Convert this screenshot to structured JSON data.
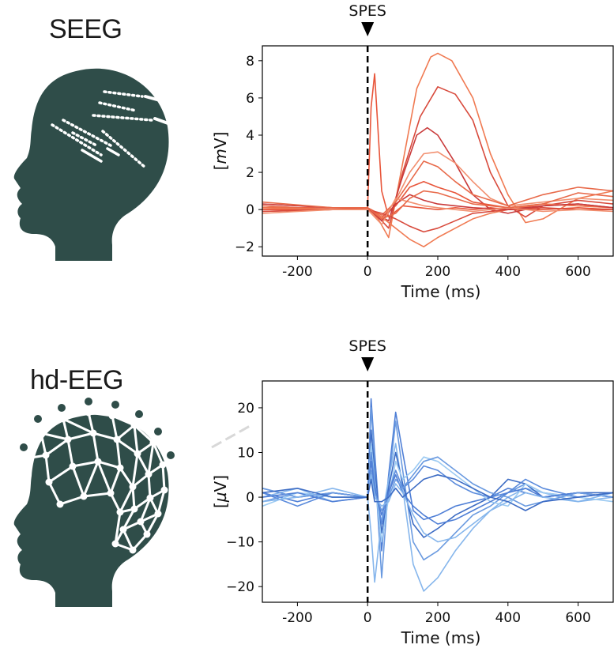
{
  "panels": {
    "seeg_label": "SEEG",
    "hdeeg_label": "hd-EEG"
  },
  "colors": {
    "head": "#2f4d49",
    "electrode": "#ffffff",
    "seeg_traces": [
      "#e8553a",
      "#f07a52",
      "#d84a3c",
      "#c93a3a",
      "#f29070",
      "#e86a4a"
    ],
    "eeg_traces": [
      "#4f7fd6",
      "#6a9ae0",
      "#86b6ec",
      "#3d6cc4",
      "#9ccaf2",
      "#5b8bdc"
    ]
  },
  "chart_data": [
    {
      "type": "line",
      "id": "seeg",
      "annotation": "SPES",
      "annotation_x": 0,
      "xlabel": "Time (ms)",
      "ylabel": "[mV]",
      "ylabel_italic": "m",
      "xlim": [
        -300,
        700
      ],
      "ylim": [
        -2.5,
        8.8
      ],
      "xticks": [
        -200,
        0,
        200,
        400,
        600
      ],
      "xtick_labels": [
        "-200",
        "0",
        "200",
        "400",
        "600"
      ],
      "yticks": [
        -2,
        0,
        2,
        4,
        6,
        8
      ],
      "ytick_labels": [
        "−2",
        "0",
        "2",
        "4",
        "6",
        "8"
      ],
      "stimulus_line": 0,
      "series": [
        {
          "x": [
            -300,
            -100,
            0,
            10,
            20,
            40,
            60,
            100,
            150,
            200,
            250,
            300,
            350,
            400,
            500,
            600,
            700
          ],
          "y": [
            0.1,
            0.1,
            0.1,
            5.5,
            7.3,
            1.0,
            -0.4,
            0.2,
            0.1,
            0.0,
            0.1,
            0.0,
            0.1,
            0.0,
            0.0,
            0.1,
            0.0
          ]
        },
        {
          "x": [
            -300,
            -100,
            0,
            30,
            60,
            100,
            140,
            180,
            200,
            240,
            300,
            350,
            400,
            450,
            500,
            600,
            700
          ],
          "y": [
            0.2,
            0.0,
            0.1,
            -0.5,
            -1.5,
            2.5,
            6.5,
            8.2,
            8.4,
            8.0,
            6.0,
            3.0,
            0.8,
            -0.7,
            -0.5,
            0.6,
            1.0
          ]
        },
        {
          "x": [
            -300,
            -100,
            0,
            30,
            60,
            100,
            150,
            200,
            250,
            300,
            350,
            400,
            450,
            500,
            600,
            700
          ],
          "y": [
            0.0,
            0.1,
            0.1,
            -0.4,
            -1.0,
            2.0,
            5.0,
            6.6,
            6.2,
            4.8,
            2.0,
            0.2,
            -0.4,
            0.2,
            0.5,
            0.3
          ]
        },
        {
          "x": [
            -300,
            -100,
            0,
            30,
            60,
            100,
            140,
            170,
            200,
            250,
            300,
            350,
            400,
            500,
            600,
            700
          ],
          "y": [
            -0.1,
            0.0,
            0.0,
            -0.3,
            -0.6,
            1.8,
            4.0,
            4.4,
            4.0,
            2.5,
            0.8,
            0.0,
            -0.2,
            0.2,
            0.3,
            0.1
          ]
        },
        {
          "x": [
            -300,
            -100,
            0,
            40,
            80,
            120,
            160,
            200,
            250,
            300,
            350,
            400,
            500,
            600,
            700
          ],
          "y": [
            0.0,
            0.1,
            0.0,
            -0.5,
            0.5,
            2.0,
            3.0,
            3.1,
            2.5,
            1.5,
            0.6,
            0.2,
            0.4,
            0.6,
            0.5
          ]
        },
        {
          "x": [
            -300,
            -100,
            0,
            40,
            80,
            120,
            160,
            200,
            250,
            300,
            400,
            500,
            600,
            700
          ],
          "y": [
            0.2,
            0.0,
            0.1,
            -0.3,
            0.4,
            1.5,
            2.6,
            2.3,
            1.5,
            0.8,
            0.2,
            0.8,
            1.2,
            1.0
          ]
        },
        {
          "x": [
            -300,
            -100,
            0,
            40,
            80,
            120,
            160,
            200,
            250,
            300,
            400,
            500,
            600,
            700
          ],
          "y": [
            0.0,
            0.0,
            0.1,
            -0.4,
            0.2,
            1.2,
            1.5,
            1.2,
            0.9,
            0.4,
            0.1,
            0.3,
            0.2,
            0.1
          ]
        },
        {
          "x": [
            -300,
            -100,
            0,
            40,
            80,
            120,
            160,
            200,
            250,
            300,
            350,
            400,
            500,
            600,
            700
          ],
          "y": [
            0.1,
            0.0,
            0.0,
            -0.4,
            -1.0,
            -1.6,
            -2.0,
            -1.5,
            -1.0,
            -0.5,
            -0.2,
            0.0,
            0.3,
            0.2,
            0.1
          ]
        },
        {
          "x": [
            -300,
            -100,
            0,
            40,
            80,
            120,
            160,
            200,
            250,
            300,
            400,
            500,
            600,
            700
          ],
          "y": [
            -0.1,
            0.0,
            0.0,
            -0.2,
            -0.5,
            -0.9,
            -1.2,
            -1.0,
            -0.6,
            -0.2,
            0.0,
            0.1,
            0.0,
            0.0
          ]
        },
        {
          "x": [
            -300,
            -100,
            0,
            40,
            80,
            120,
            160,
            200,
            250,
            300,
            400,
            500,
            600,
            700
          ],
          "y": [
            0.3,
            0.1,
            0.1,
            -0.6,
            0.3,
            0.8,
            0.5,
            0.3,
            0.2,
            0.1,
            0.0,
            0.2,
            0.3,
            0.1
          ]
        },
        {
          "x": [
            -300,
            -100,
            0,
            40,
            80,
            120,
            160,
            200,
            250,
            300,
            400,
            500,
            600,
            700
          ],
          "y": [
            -0.2,
            0.0,
            0.0,
            -0.8,
            0.6,
            0.4,
            0.2,
            0.1,
            0.0,
            -0.1,
            0.1,
            -0.1,
            0.0,
            -0.1
          ]
        },
        {
          "x": [
            -300,
            -100,
            0,
            40,
            80,
            120,
            160,
            200,
            250,
            300,
            400,
            500,
            600,
            700
          ],
          "y": [
            0.4,
            0.1,
            0.1,
            -0.5,
            -0.2,
            0.6,
            1.0,
            0.9,
            0.6,
            0.3,
            0.1,
            0.3,
            0.9,
            0.7
          ]
        }
      ]
    },
    {
      "type": "line",
      "id": "hdeeg",
      "annotation": "SPES",
      "annotation_x": 0,
      "xlabel": "Time (ms)",
      "ylabel": "[µV]",
      "ylabel_italic": "µ",
      "xlim": [
        -300,
        700
      ],
      "ylim": [
        -23.5,
        26
      ],
      "xticks": [
        -200,
        0,
        200,
        400,
        600
      ],
      "xtick_labels": [
        "-200",
        "0",
        "200",
        "400",
        "600"
      ],
      "yticks": [
        -20,
        -10,
        0,
        10,
        20
      ],
      "ytick_labels": [
        "−20",
        "−10",
        "0",
        "10",
        "20"
      ],
      "stimulus_line": 0,
      "series": [
        {
          "x": [
            -300,
            -200,
            -100,
            0,
            10,
            20,
            40,
            60,
            80,
            100,
            130,
            160,
            200,
            250,
            300,
            350,
            400,
            450,
            500,
            600,
            700
          ],
          "y": [
            1,
            -1,
            1,
            0,
            22,
            10,
            -12,
            5,
            19,
            10,
            -3,
            -5,
            -4,
            -2,
            -1,
            0,
            2,
            1,
            0,
            1,
            0
          ]
        },
        {
          "x": [
            -300,
            -200,
            -100,
            0,
            10,
            20,
            40,
            60,
            80,
            100,
            130,
            160,
            200,
            250,
            300,
            350,
            400,
            450,
            500,
            600,
            700
          ],
          "y": [
            -1,
            1,
            0,
            0,
            20,
            8,
            -18,
            3,
            17,
            6,
            -10,
            -14,
            -12,
            -8,
            -4,
            -2,
            1,
            3,
            1,
            0,
            1
          ]
        },
        {
          "x": [
            -300,
            -200,
            -100,
            0,
            10,
            20,
            40,
            60,
            80,
            100,
            130,
            160,
            200,
            250,
            300,
            350,
            400,
            450,
            500,
            600,
            700
          ],
          "y": [
            0,
            2,
            -1,
            0,
            -8,
            -19,
            -5,
            4,
            12,
            2,
            -15,
            -21,
            -18,
            -12,
            -7,
            -3,
            0,
            2,
            1,
            -1,
            0
          ]
        },
        {
          "x": [
            -300,
            -200,
            -100,
            0,
            10,
            20,
            40,
            60,
            80,
            100,
            130,
            160,
            200,
            250,
            300,
            350,
            400,
            450,
            500,
            600,
            700
          ],
          "y": [
            2,
            0,
            1,
            0,
            15,
            6,
            -8,
            2,
            10,
            3,
            -6,
            -9,
            -7,
            -4,
            -2,
            0,
            4,
            3,
            0,
            1,
            1
          ]
        },
        {
          "x": [
            -300,
            -200,
            -100,
            0,
            10,
            20,
            40,
            60,
            80,
            100,
            130,
            160,
            200,
            250,
            300,
            350,
            400,
            450,
            500,
            600,
            700
          ],
          "y": [
            -2,
            1,
            0,
            0,
            12,
            4,
            -10,
            0,
            8,
            4,
            6,
            9,
            8,
            5,
            2,
            -1,
            -2,
            3,
            1,
            0,
            -1
          ]
        },
        {
          "x": [
            -300,
            -200,
            -100,
            0,
            10,
            20,
            40,
            60,
            80,
            100,
            130,
            160,
            200,
            250,
            300,
            350,
            400,
            450,
            500,
            600,
            700
          ],
          "y": [
            1,
            -2,
            1,
            0,
            10,
            3,
            -6,
            1,
            6,
            2,
            4,
            7,
            6,
            3,
            1,
            0,
            1,
            4,
            2,
            0,
            1
          ]
        },
        {
          "x": [
            -300,
            -200,
            -100,
            0,
            10,
            20,
            40,
            60,
            80,
            100,
            130,
            160,
            200,
            250,
            300,
            350,
            400,
            450,
            500,
            600,
            700
          ],
          "y": [
            0,
            1,
            -1,
            0,
            8,
            2,
            -4,
            1,
            5,
            1,
            -2,
            -4,
            -6,
            -5,
            -3,
            -1,
            1,
            2,
            0,
            1,
            0
          ]
        },
        {
          "x": [
            -300,
            -200,
            -100,
            0,
            10,
            20,
            40,
            60,
            80,
            100,
            130,
            160,
            200,
            250,
            300,
            350,
            400,
            450,
            500,
            600,
            700
          ],
          "y": [
            2,
            0,
            1,
            0,
            6,
            1,
            -3,
            0,
            4,
            2,
            5,
            8,
            9,
            6,
            3,
            1,
            0,
            -2,
            -1,
            1,
            0
          ]
        },
        {
          "x": [
            -300,
            -200,
            -100,
            0,
            10,
            20,
            40,
            60,
            80,
            100,
            130,
            160,
            200,
            250,
            300,
            350,
            400,
            450,
            500,
            600,
            700
          ],
          "y": [
            -1,
            0,
            2,
            0,
            5,
            0,
            -2,
            -1,
            3,
            1,
            -4,
            -8,
            -10,
            -9,
            -6,
            -3,
            -1,
            1,
            0,
            -1,
            1
          ]
        },
        {
          "x": [
            -300,
            -200,
            -100,
            0,
            10,
            20,
            40,
            60,
            80,
            100,
            130,
            160,
            200,
            250,
            300,
            350,
            400,
            450,
            500,
            600,
            700
          ],
          "y": [
            1,
            2,
            0,
            0,
            4,
            -1,
            -1,
            0,
            2,
            0,
            2,
            4,
            5,
            4,
            2,
            0,
            -1,
            -3,
            -1,
            0,
            1
          ]
        }
      ]
    }
  ]
}
